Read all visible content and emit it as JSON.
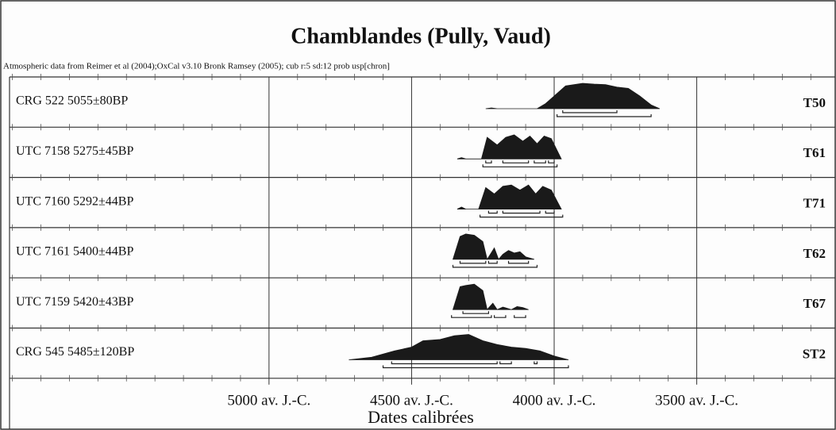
{
  "chart_data": {
    "type": "density",
    "title": "Chamblandes (Pully, Vaud)",
    "subtitle": "Atmospheric data from Reimer et al (2004);OxCal v3.10 Bronk Ramsey (2005); cub r:5 sd:12 prob usp[chron]",
    "xlabel": "Dates calibrées",
    "xlim": [
      -5910,
      -3020
    ],
    "xticks": [
      {
        "value": -5000,
        "label": "5000 av. J.-C."
      },
      {
        "value": -4500,
        "label": "4500 av. J.-C."
      },
      {
        "value": -4000,
        "label": "4000 av. J.-C."
      },
      {
        "value": -3500,
        "label": "3500 av. J.-C."
      }
    ],
    "minor_xticks": [
      -5900,
      -5800,
      -5700,
      -5600,
      -5500,
      -5400,
      -5300,
      -5200,
      -5100,
      -4900,
      -4800,
      -4700,
      -4600,
      -4400,
      -4300,
      -4200,
      -4100,
      -3900,
      -3800,
      -3700,
      -3600,
      -3400,
      -3300,
      -3200,
      -3100
    ],
    "grid": true,
    "color": "#1a1a1a",
    "rows": [
      {
        "label": "CRG 522  5055±80BP",
        "tag": "T50",
        "density": {
          "x": [
            -4240,
            -4220,
            -4200,
            -4060,
            -4030,
            -4000,
            -3960,
            -3900,
            -3860,
            -3820,
            -3780,
            -3740,
            -3700,
            -3660,
            -3630
          ],
          "values": [
            0,
            0.03,
            0,
            0,
            0.2,
            0.5,
            0.9,
            1,
            0.97,
            0.95,
            0.85,
            0.8,
            0.5,
            0.15,
            0
          ]
        },
        "one_sigma": [
          [
            -3970,
            -3780
          ]
        ],
        "two_sigma": [
          [
            -3990,
            -3660
          ]
        ]
      },
      {
        "label": "UTC 7158  5275±45BP",
        "tag": "T61",
        "density": {
          "x": [
            -4340,
            -4325,
            -4310,
            -4255,
            -4235,
            -4200,
            -4170,
            -4140,
            -4110,
            -4085,
            -4060,
            -4035,
            -4010,
            -3975
          ],
          "values": [
            0,
            0.05,
            0,
            0,
            0.85,
            0.55,
            0.85,
            0.95,
            0.7,
            0.9,
            0.6,
            0.9,
            0.8,
            0
          ]
        },
        "one_sigma": [
          [
            -4240,
            -4220
          ],
          [
            -4180,
            -4090
          ],
          [
            -4070,
            -4030
          ],
          [
            -4020,
            -4000
          ]
        ],
        "two_sigma": [
          [
            -4250,
            -3990
          ]
        ]
      },
      {
        "label": "UTC 7160  5292±44BP",
        "tag": "T71",
        "density": {
          "x": [
            -4340,
            -4325,
            -4310,
            -4265,
            -4240,
            -4210,
            -4180,
            -4150,
            -4120,
            -4090,
            -4065,
            -4040,
            -4010,
            -3975
          ],
          "values": [
            0,
            0.08,
            0,
            0,
            0.85,
            0.6,
            0.9,
            0.95,
            0.75,
            0.95,
            0.6,
            0.9,
            0.75,
            0
          ]
        },
        "one_sigma": [
          [
            -4230,
            -4200
          ],
          [
            -4180,
            -4050
          ],
          [
            -4030,
            -4000
          ]
        ],
        "two_sigma": [
          [
            -4260,
            -3970
          ]
        ]
      },
      {
        "label": "UTC 7161  5400±44BP",
        "tag": "T62",
        "density": {
          "x": [
            -4355,
            -4330,
            -4310,
            -4280,
            -4250,
            -4235,
            -4210,
            -4195,
            -4180,
            -4160,
            -4140,
            -4120,
            -4100,
            -4070
          ],
          "values": [
            0,
            0.9,
            1,
            0.95,
            0.7,
            0,
            0.45,
            0,
            0.2,
            0.35,
            0.25,
            0.3,
            0.1,
            0
          ]
        },
        "one_sigma": [
          [
            -4330,
            -4240
          ],
          [
            -4230,
            -4200
          ],
          [
            -4160,
            -4090
          ]
        ],
        "two_sigma": [
          [
            -4355,
            -4060
          ]
        ]
      },
      {
        "label": "UTC 7159  5420±43BP",
        "tag": "T67",
        "density": {
          "x": [
            -4355,
            -4330,
            -4310,
            -4280,
            -4250,
            -4235,
            -4215,
            -4200,
            -4180,
            -4150,
            -4130,
            -4110,
            -4090
          ],
          "values": [
            0,
            0.9,
            0.95,
            1,
            0.75,
            0,
            0.25,
            0,
            0.1,
            0,
            0.12,
            0.08,
            0
          ]
        },
        "one_sigma": [
          [
            -4320,
            -4230
          ]
        ],
        "two_sigma": [
          [
            -4360,
            -4220
          ],
          [
            -4210,
            -4170
          ],
          [
            -4140,
            -4100
          ]
        ]
      },
      {
        "label": "CRG 545  5485±120BP",
        "tag": "ST2",
        "density": {
          "x": [
            -4720,
            -4640,
            -4560,
            -4500,
            -4460,
            -4400,
            -4350,
            -4300,
            -4250,
            -4200,
            -4150,
            -4100,
            -4050,
            -4000,
            -3950
          ],
          "values": [
            0,
            0.1,
            0.35,
            0.5,
            0.75,
            0.8,
            0.95,
            1,
            0.75,
            0.6,
            0.5,
            0.45,
            0.35,
            0.15,
            0
          ]
        },
        "one_sigma": [
          [
            -4570,
            -4200
          ],
          [
            -4190,
            -4150
          ],
          [
            -4070,
            -4060
          ]
        ],
        "two_sigma": [
          [
            -4600,
            -3950
          ]
        ]
      }
    ]
  }
}
